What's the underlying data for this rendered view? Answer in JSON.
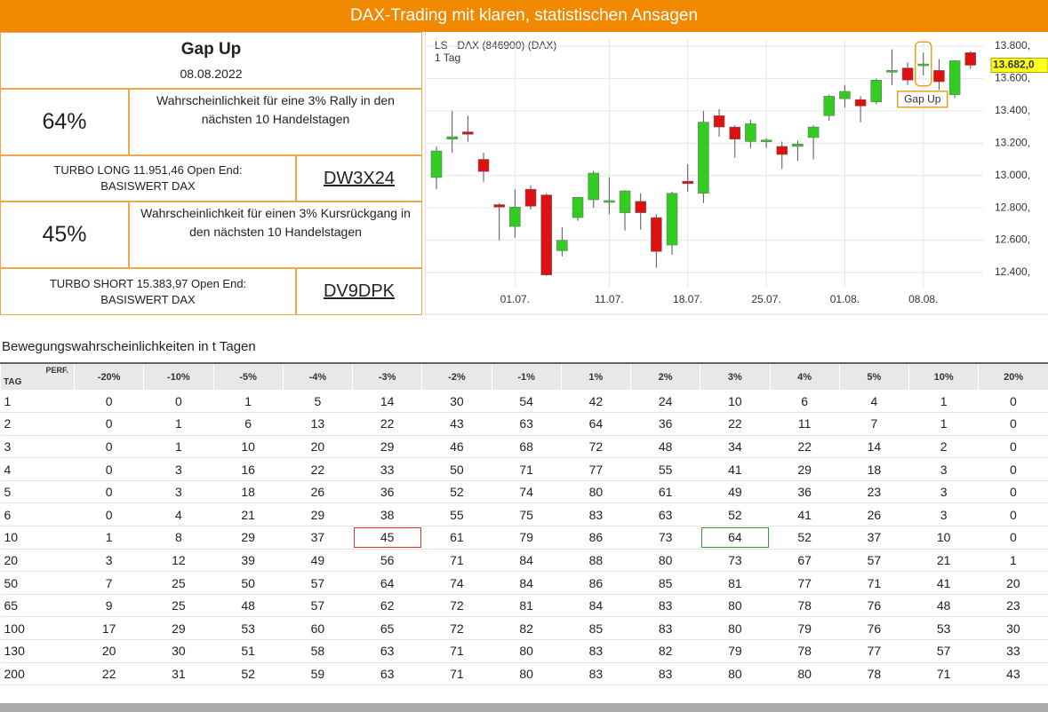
{
  "header": {
    "title": "DAX-Trading mit klaren, statistischen Ansagen"
  },
  "signal": {
    "title": "Gap Up",
    "date": "08.08.2022"
  },
  "long": {
    "probability": "64%",
    "text": "Wahrscheinlichkeit für eine 3% Rally in den nächsten 10 Handelstagen",
    "product": "TURBO LONG 11.951,46 Open End:",
    "underlying": "BASISWERT DAX",
    "code": "DW3X24"
  },
  "short": {
    "probability": "45%",
    "text": "Wahrscheinlichkeit für einen 3% Kursrückgang in den nächsten 10 Handelstagen",
    "product": "TURBO SHORT 15.383,97 Open End:",
    "underlying": "BASISWERT DAX",
    "code": "DV9DPK"
  },
  "chart_data": {
    "type": "candlestick",
    "title": "LS - DAX (846900) (DAX)",
    "subtitle": "1 Tag",
    "categories": [
      null,
      null,
      null,
      null,
      null,
      "01.07.",
      null,
      null,
      null,
      null,
      null,
      "11.07.",
      null,
      null,
      null,
      null,
      "18.07.",
      null,
      null,
      null,
      null,
      "25.07.",
      null,
      null,
      null,
      null,
      "01.08.",
      null,
      null,
      null,
      null,
      "08.08.",
      null,
      null,
      null
    ],
    "open": [
      12988,
      13225,
      13270,
      13100,
      12820,
      12685,
      12915,
      12880,
      12535,
      12740,
      12850,
      12835,
      12770,
      12840,
      12740,
      12570,
      12965,
      12890,
      13370,
      13300,
      13210,
      13210,
      13180,
      13180,
      13235,
      13370,
      13475,
      13470,
      13455,
      13640,
      13665,
      13680,
      13650,
      13500,
      13760
    ],
    "high": [
      13180,
      13400,
      13370,
      13140,
      12830,
      12915,
      12940,
      12890,
      12680,
      12870,
      13030,
      12990,
      12910,
      12890,
      12760,
      12900,
      13070,
      13400,
      13410,
      13310,
      13345,
      13230,
      13210,
      13215,
      13310,
      13500,
      13560,
      13490,
      13600,
      13780,
      13700,
      13760,
      13720,
      13715,
      13770
    ],
    "low": [
      12916,
      13140,
      13210,
      12960,
      12600,
      12615,
      12790,
      12380,
      12500,
      12720,
      12800,
      12760,
      12660,
      12665,
      12430,
      12510,
      12900,
      12830,
      13240,
      13110,
      13170,
      13170,
      13040,
      13090,
      13100,
      13340,
      13420,
      13330,
      13440,
      13560,
      13560,
      13620,
      13530,
      13480,
      13660
    ],
    "close": [
      13152,
      13240,
      13255,
      13025,
      12805,
      12805,
      12810,
      12385,
      12600,
      12865,
      13015,
      12845,
      12905,
      12770,
      12530,
      12890,
      12950,
      13330,
      13300,
      13225,
      13320,
      13220,
      13130,
      13195,
      13300,
      13490,
      13520,
      13430,
      13590,
      13650,
      13590,
      13690,
      13580,
      13710,
      13682
    ],
    "up_color": "#33cc22",
    "down_color": "#dd1111",
    "ylim": [
      12400,
      13800
    ],
    "yticks": [
      {
        "value": 12400,
        "label": "12.400,"
      },
      {
        "value": 12600,
        "label": "12.600,"
      },
      {
        "value": 12800,
        "label": "12.800,"
      },
      {
        "value": 13000,
        "label": "13.000,"
      },
      {
        "value": 13200,
        "label": "13.200,"
      },
      {
        "value": 13400,
        "label": "13.400,"
      },
      {
        "value": 13600,
        "label": "13.600,"
      },
      {
        "value": 13800,
        "label": "13.800,"
      }
    ],
    "grid": true,
    "last_price": {
      "value": 13682,
      "label": "13.682,0"
    },
    "annotation": {
      "label": "Gap Up",
      "category": "08.08."
    }
  },
  "table": {
    "title": "Bewegungswahrscheinlichkeiten in t Tagen",
    "corner_top": "PERF.",
    "corner_bottom": "TAG",
    "columns": [
      "-20%",
      "-10%",
      "-5%",
      "-4%",
      "-3%",
      "-2%",
      "-1%",
      "1%",
      "2%",
      "3%",
      "4%",
      "5%",
      "10%",
      "20%"
    ],
    "rows": [
      [
        1,
        0,
        0,
        1,
        5,
        14,
        30,
        54,
        42,
        24,
        10,
        6,
        4,
        1,
        0
      ],
      [
        2,
        0,
        1,
        6,
        13,
        22,
        43,
        63,
        64,
        36,
        22,
        11,
        7,
        1,
        0
      ],
      [
        3,
        0,
        1,
        10,
        20,
        29,
        46,
        68,
        72,
        48,
        34,
        22,
        14,
        2,
        0
      ],
      [
        4,
        0,
        3,
        16,
        22,
        33,
        50,
        71,
        77,
        55,
        41,
        29,
        18,
        3,
        0
      ],
      [
        5,
        0,
        3,
        18,
        26,
        36,
        52,
        74,
        80,
        61,
        49,
        36,
        23,
        3,
        0
      ],
      [
        6,
        0,
        4,
        21,
        29,
        38,
        55,
        75,
        83,
        63,
        52,
        41,
        26,
        3,
        0
      ],
      [
        10,
        1,
        8,
        29,
        37,
        45,
        61,
        79,
        86,
        73,
        64,
        52,
        37,
        10,
        0
      ],
      [
        20,
        3,
        12,
        39,
        49,
        56,
        71,
        84,
        88,
        80,
        73,
        67,
        57,
        21,
        1
      ],
      [
        50,
        7,
        25,
        50,
        57,
        64,
        74,
        84,
        86,
        85,
        81,
        77,
        71,
        41,
        20
      ],
      [
        65,
        9,
        25,
        48,
        57,
        62,
        72,
        81,
        84,
        83,
        80,
        78,
        76,
        48,
        23
      ],
      [
        100,
        17,
        29,
        53,
        60,
        65,
        72,
        82,
        85,
        83,
        80,
        79,
        76,
        53,
        30
      ],
      [
        130,
        20,
        30,
        51,
        58,
        63,
        71,
        80,
        83,
        82,
        79,
        78,
        77,
        57,
        33
      ],
      [
        200,
        22,
        31,
        52,
        59,
        63,
        71,
        80,
        83,
        83,
        80,
        80,
        78,
        71,
        43
      ]
    ]
  }
}
